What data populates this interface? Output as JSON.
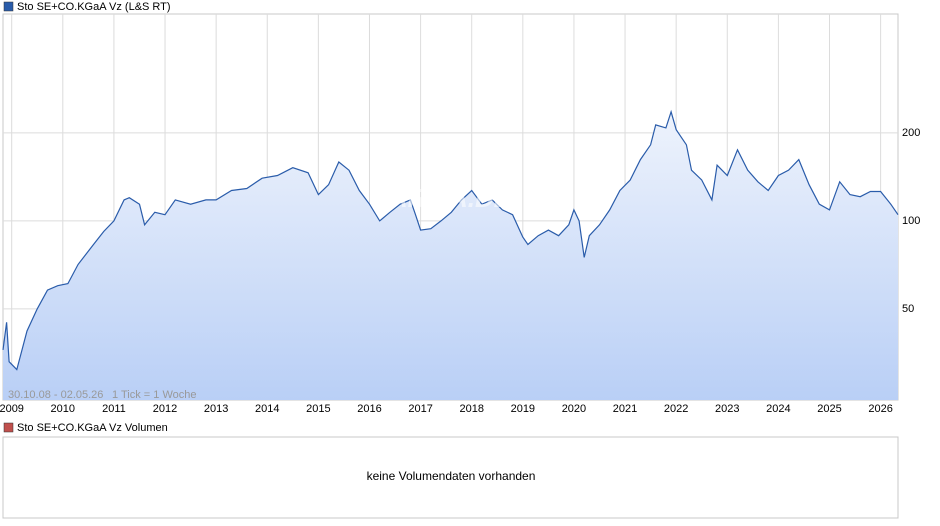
{
  "chart_data": {
    "type": "line",
    "series": [
      {
        "name": "Sto SE+CO.KGaA Vz (L&S RT)",
        "color": "#2a5caa",
        "values": [
          36.2,
          45,
          33,
          31,
          42,
          50,
          58,
          60,
          61,
          71,
          83,
          92,
          100,
          118,
          120,
          114,
          97,
          107,
          105,
          118,
          114,
          118,
          118,
          127,
          129,
          140,
          143,
          152,
          146,
          123,
          133,
          159,
          149,
          127,
          114,
          100,
          107,
          114,
          118,
          105,
          93,
          94,
          100,
          107,
          118,
          127,
          114,
          118,
          109,
          105,
          88,
          83,
          89,
          93,
          89,
          97,
          109,
          100,
          75,
          89,
          97,
          109,
          127,
          138,
          162,
          182,
          213,
          208,
          236,
          205,
          182,
          149,
          138,
          118,
          155,
          143,
          175,
          149,
          136,
          127,
          143,
          149,
          162,
          133,
          114,
          109,
          136,
          123,
          121,
          126,
          126,
          114,
          105
        ]
      }
    ],
    "x": [
      2008.83,
      2008.9,
      2008.95,
      2009.1,
      2009.3,
      2009.5,
      2009.7,
      2009.9,
      2010.1,
      2010.3,
      2010.6,
      2010.8,
      2011.0,
      2011.2,
      2011.3,
      2011.5,
      2011.6,
      2011.8,
      2012.0,
      2012.2,
      2012.5,
      2012.8,
      2013.0,
      2013.3,
      2013.6,
      2013.9,
      2014.2,
      2014.5,
      2014.8,
      2015.0,
      2015.2,
      2015.4,
      2015.6,
      2015.8,
      2016.0,
      2016.2,
      2016.4,
      2016.6,
      2016.8,
      2016.9,
      2017.0,
      2017.2,
      2017.4,
      2017.6,
      2017.8,
      2018.0,
      2018.2,
      2018.4,
      2018.6,
      2018.8,
      2019.0,
      2019.1,
      2019.3,
      2019.5,
      2019.7,
      2019.9,
      2020.0,
      2020.1,
      2020.2,
      2020.3,
      2020.5,
      2020.7,
      2020.9,
      2021.1,
      2021.3,
      2021.5,
      2021.6,
      2021.8,
      2021.9,
      2022.0,
      2022.2,
      2022.3,
      2022.5,
      2022.7,
      2022.8,
      2023.0,
      2023.2,
      2023.4,
      2023.6,
      2023.8,
      2024.0,
      2024.2,
      2024.4,
      2024.6,
      2024.8,
      2025.0,
      2025.2,
      2025.4,
      2025.6,
      2025.8,
      2026.0,
      2026.2,
      2026.34
    ],
    "xlim": [
      2008.83,
      2026.34
    ],
    "xticks": [
      2009,
      2010,
      2011,
      2012,
      2013,
      2014,
      2015,
      2016,
      2017,
      2018,
      2019,
      2020,
      2021,
      2022,
      2023,
      2024,
      2025,
      2026
    ],
    "ylim": [
      24.4,
      510
    ],
    "yticks": [
      50,
      100,
      200
    ],
    "log_y": true,
    "grid": true,
    "date_range": "30.10.08 - 02.05.26",
    "tick_info": "1 Tick = 1 Woche",
    "watermark": "ARIVA.DE"
  },
  "volume_panel": {
    "title": "Sto SE+CO.KGaA Vz Volumen",
    "color": "#c0504d",
    "message": "keine Volumendaten vorhanden"
  }
}
